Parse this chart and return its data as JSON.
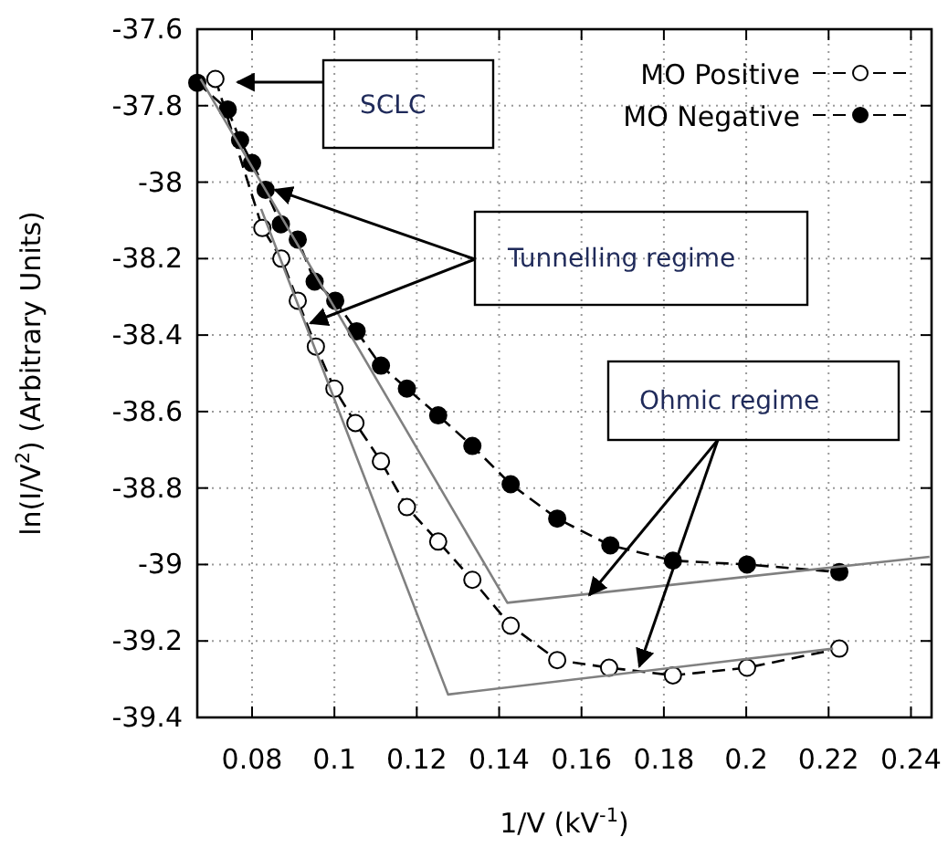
{
  "chart_data": {
    "type": "line",
    "xlabel": "1/V (kV$^{-1}$)",
    "ylabel": "ln(I/V$^{2}$) (Arbitrary Units)",
    "xlim": [
      0.0667,
      0.245
    ],
    "ylim": [
      -39.4,
      -37.6
    ],
    "xticks": [
      0.08,
      0.1,
      0.12,
      0.14,
      0.16,
      0.18,
      0.2,
      0.22,
      0.24
    ],
    "yticks": [
      -39.4,
      -39.2,
      -39,
      -38.8,
      -38.6,
      -38.4,
      -38.2,
      -38,
      -37.8,
      -37.6
    ],
    "grid": true,
    "legend": "top right",
    "marker": "circle",
    "line_style": "dashed",
    "annotations": [
      "SCLC",
      {
        "text": "Tunnelling regime",
        "x": 0.0856,
        "y": -38.02
      },
      {
        "text": "Ohmic regime",
        "x": 0.1619,
        "y": -39.08
      }
    ],
    "series": [
      {
        "name": "MO Positive",
        "color": "#000000",
        "x": [
          0.0711,
          0.0825,
          0.0871,
          0.0911,
          0.0955,
          0.1,
          0.1051,
          0.1113,
          0.1176,
          0.1252,
          0.1335,
          0.1428,
          0.1541,
          0.1667,
          0.1822,
          0.2002,
          0.2226
        ],
        "values": [
          -37.73,
          -38.12,
          -38.2,
          -38.31,
          -38.43,
          -38.54,
          -38.63,
          -38.73,
          -38.85,
          -38.94,
          -39.04,
          -39.16,
          -39.25,
          -39.27,
          -39.29,
          -39.27,
          -39.22
        ]
      },
      {
        "name": "MO Negative",
        "color": "#000000",
        "x": [
          0.0667,
          0.0741,
          0.0771,
          0.08,
          0.0833,
          0.087,
          0.0911,
          0.0952,
          0.1002,
          0.1054,
          0.1113,
          0.1176,
          0.1252,
          0.1335,
          0.1428,
          0.1541,
          0.167,
          0.1822,
          0.2002,
          0.2226
        ],
        "values": [
          -37.74,
          -37.81,
          -37.89,
          -37.95,
          -38.02,
          -38.11,
          -38.15,
          -38.26,
          -38.31,
          -38.39,
          -38.48,
          -38.54,
          -38.61,
          -38.69,
          -38.79,
          -38.88,
          -38.95,
          -38.99,
          -39,
          -39.02
        ]
      },
      {
        "type": "line",
        "color": "#808080",
        "marker": "none",
        "line_style": "solid",
        "x": [
          0.0675,
          0.142,
          0.2445
        ],
        "values": [
          -37.73,
          -39.1,
          -38.98
        ]
      },
      {
        "type": "line",
        "color": "#808080",
        "marker": "none",
        "line_style": "solid",
        "x": [
          0.0822,
          0.1276,
          0.2211
        ],
        "values": [
          -38.07,
          -39.34,
          -39.22
        ]
      }
    ]
  }
}
